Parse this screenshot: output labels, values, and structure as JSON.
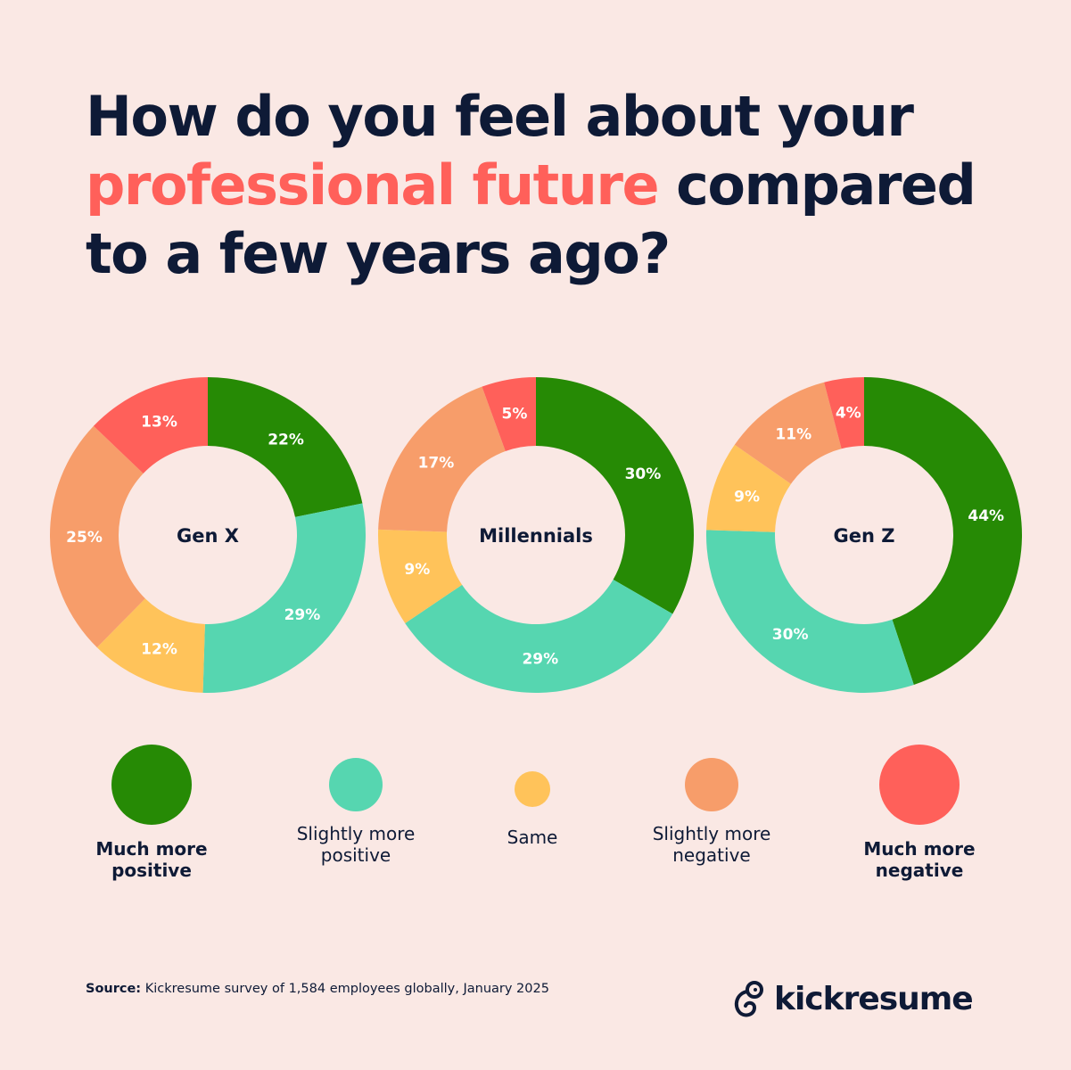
{
  "title": {
    "part1": "How do you feel about your ",
    "highlight": "professional future",
    "part2": " compared to a few years ago?"
  },
  "colors": {
    "background": "#fae8e4",
    "text": "#0e1a36",
    "highlight": "#ff605a",
    "much_more_positive": "#268a05",
    "slightly_more_positive": "#56d6b0",
    "same": "#ffc35a",
    "slightly_more_negative": "#f79d6a",
    "much_more_negative": "#ff605a"
  },
  "chart_data": {
    "type": "pie",
    "variant": "donut",
    "categories": [
      "Much more positive",
      "Slightly more positive",
      "Same",
      "Slightly more negative",
      "Much more negative"
    ],
    "series": [
      {
        "name": "Gen X",
        "values": [
          22,
          29,
          12,
          25,
          13
        ],
        "labels": [
          "22%",
          "29%",
          "12%",
          "25%",
          "13%"
        ]
      },
      {
        "name": "Millennials",
        "values": [
          30,
          29,
          9,
          17,
          5
        ],
        "labels": [
          "30%",
          "29%",
          "9%",
          "17%",
          "5%"
        ]
      },
      {
        "name": "Gen Z",
        "values": [
          44,
          30,
          9,
          11,
          4
        ],
        "labels": [
          "44%",
          "30%",
          "9%",
          "11%",
          "4%"
        ]
      }
    ],
    "legend_placement": "bottom"
  },
  "legend": [
    {
      "label": "Much more positive",
      "color": "#268a05",
      "bold": true
    },
    {
      "label": "Slightly more positive",
      "color": "#56d6b0",
      "bold": false
    },
    {
      "label": "Same",
      "color": "#ffc35a",
      "bold": false
    },
    {
      "label": "Slightly more negative",
      "color": "#f79d6a",
      "bold": false
    },
    {
      "label": "Much more negative",
      "color": "#ff605a",
      "bold": true
    }
  ],
  "source": {
    "label": "Source:",
    "text": " Kickresume survey of 1,584  employees globally, January 2025"
  },
  "logo": {
    "text": "kickresume"
  }
}
